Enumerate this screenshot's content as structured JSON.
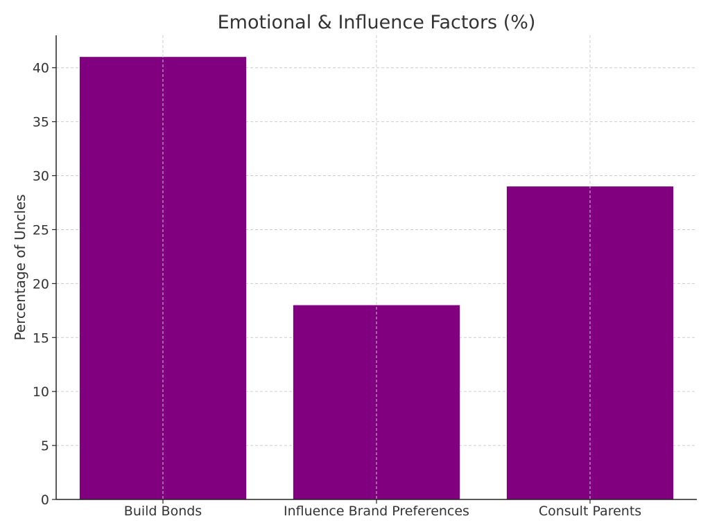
{
  "chart_data": {
    "type": "bar",
    "title": "Emotional & Influence Factors (%)",
    "xlabel": "",
    "ylabel": "Percentage of Uncles",
    "categories": [
      "Build Bonds",
      "Influence Brand Preferences",
      "Consult Parents"
    ],
    "values": [
      41,
      18,
      29
    ],
    "ylim": [
      0,
      43
    ],
    "yticks": [
      0,
      5,
      10,
      15,
      20,
      25,
      30,
      35,
      40
    ],
    "grid": true,
    "bar_color": "#800080",
    "legend": "none"
  }
}
